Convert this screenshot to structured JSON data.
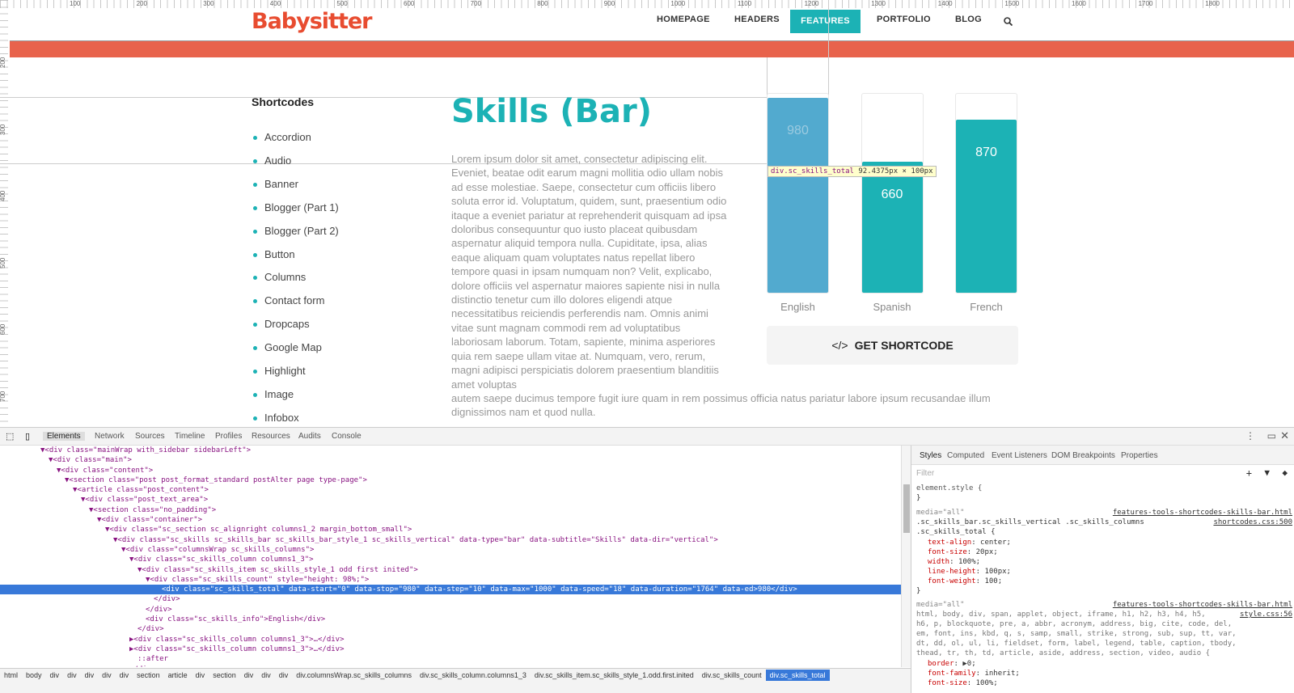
{
  "ruler": {
    "top": [
      "100",
      "200",
      "300",
      "400",
      "500",
      "600",
      "700",
      "800",
      "900",
      "1000",
      "1100",
      "1200",
      "1300",
      "1400",
      "1500",
      "1600",
      "1700",
      "1800"
    ],
    "left": [
      "200",
      "300",
      "400",
      "500",
      "600",
      "700"
    ]
  },
  "site": {
    "logo": "Babysitter",
    "nav": [
      "HOMEPAGE",
      "HEADERS",
      "FEATURES",
      "PORTFOLIO",
      "BLOG"
    ],
    "active_nav": "FEATURES",
    "search_icon": "search-icon",
    "brand_color": "#e84c30",
    "accent_color": "#1cb2b5"
  },
  "sidebar": {
    "title": "Shortcodes",
    "items": [
      "Accordion",
      "Audio",
      "Banner",
      "Blogger (Part 1)",
      "Blogger (Part 2)",
      "Button",
      "Columns",
      "Contact form",
      "Dropcaps",
      "Google Map",
      "Highlight",
      "Image",
      "Infobox"
    ]
  },
  "main": {
    "title": "Skills (Bar)",
    "lorem": "Lorem ipsum dolor sit amet, consectetur adipiscing elit. Eveniet, beatae odit earum magni mollitia odio ullam nobis ad esse molestiae. Saepe, consectetur cum officiis libero soluta error id. Voluptatum, quidem, sunt, praesentium odio itaque a eveniet pariatur at reprehenderit quisquam ad ipsa doloribus consequuntur quo iusto placeat quibusdam aspernatur aliquid tempora nulla. Cupiditate, ipsa, alias eaque aliquam quam voluptates natus repellat libero tempore quasi in ipsam numquam non? Velit, explicabo, dolore officiis vel aspernatur maiores sapiente nisi in nulla distinctio tenetur cum illo dolores eligendi atque necessitatibus reiciendis perferendis nam. Omnis animi vitae sunt magnam commodi rem ad voluptatibus laboriosam laborum. Totam, sapiente, minima asperiores quia rem saepe ullam vitae at. Numquam, vero, rerum, magni adipisci perspiciatis dolorem praesentium blanditiis amet voluptas",
    "lorem_tail": "autem saepe ducimus tempore fugit iure quam in rem possimus officia natus pariatur labore ipsum recusandae illum dignissimos nam et quod nulla.",
    "skills": [
      {
        "label": "English",
        "value": "980",
        "fraction": 0.98
      },
      {
        "label": "Spanish",
        "value": "660",
        "fraction": 0.66
      },
      {
        "label": "French",
        "value": "870",
        "fraction": 0.87
      }
    ],
    "skills_max": 1000,
    "shortcode_button": "GET SHORTCODE"
  },
  "tooltip": {
    "selector": "div.sc_skills_total",
    "size": "92.4375px × 100px"
  },
  "devtools": {
    "tabs": [
      "Elements",
      "Network",
      "Sources",
      "Timeline",
      "Profiles",
      "Resources",
      "Audits",
      "Console"
    ],
    "active_tab": "Elements",
    "code": [
      {
        "i": 4,
        "t": "▼<div class=\"mainWrap with_sidebar sidebarLeft\">"
      },
      {
        "i": 5,
        "t": "▼<div class=\"main\">"
      },
      {
        "i": 6,
        "t": "▼<div class=\"content\">"
      },
      {
        "i": 7,
        "t": "▼<section class=\"post post_format_standard postAlter page type-page\">"
      },
      {
        "i": 8,
        "t": "▼<article class=\"post_content\">"
      },
      {
        "i": 9,
        "t": "▼<div class=\"post_text_area\">"
      },
      {
        "i": 10,
        "t": "▼<section class=\"no_padding\">"
      },
      {
        "i": 11,
        "t": "▼<div class=\"container\">"
      },
      {
        "i": 12,
        "t": "▼<div class=\"sc_section sc_alignright columns1_2 margin_bottom_small\">"
      },
      {
        "i": 13,
        "t": "▼<div class=\"sc_skills sc_skills_bar sc_skills_bar_style_1 sc_skills_vertical\" data-type=\"bar\" data-subtitle=\"Skills\" data-dir=\"vertical\">"
      },
      {
        "i": 14,
        "t": "▼<div class=\"columnsWrap sc_skills_columns\">"
      },
      {
        "i": 15,
        "t": "▼<div class=\"sc_skills_column columns1_3\">"
      },
      {
        "i": 16,
        "t": "▼<div class=\"sc_skills_item sc_skills_style_1 odd first inited\">"
      },
      {
        "i": 17,
        "t": "▼<div class=\"sc_skills_count\" style=\"height: 98%;\">"
      },
      {
        "i": 19,
        "t": "<div class=\"sc_skills_total\" data-start=\"0\" data-stop=\"980\" data-step=\"10\" data-max=\"1000\" data-speed=\"18\" data-duration=\"1764\" data-ed>980</div>",
        "sel": true
      },
      {
        "i": 18,
        "t": "</div>"
      },
      {
        "i": 17,
        "t": "</div>"
      },
      {
        "i": 17,
        "t": "<div class=\"sc_skills_info\">English</div>"
      },
      {
        "i": 16,
        "t": "</div>"
      },
      {
        "i": 15,
        "t": "▶<div class=\"sc_skills_column columns1_3\">…</div>"
      },
      {
        "i": 15,
        "t": "▶<div class=\"sc_skills_column columns1_3\">…</div>"
      },
      {
        "i": 16,
        "t": "::after"
      },
      {
        "i": 15,
        "t": "</div>"
      }
    ],
    "breadcrumbs": [
      "html",
      "body",
      "div",
      "div",
      "div",
      "div",
      "div",
      "section",
      "article",
      "div",
      "section",
      "div",
      "div",
      "div",
      "div.columnsWrap.sc_skills_columns",
      "div.sc_skills_column.columns1_3",
      "div.sc_skills_item.sc_skills_style_1.odd.first.inited",
      "div.sc_skills_count",
      "div.sc_skills_total"
    ],
    "styles": {
      "tabs": [
        "Styles",
        "Computed",
        "Event Listeners",
        "DOM Breakpoints",
        "Properties"
      ],
      "filter_placeholder": "Filter",
      "element_style": "element.style {",
      "close": "}",
      "rule1": {
        "media": "media=\"all\"",
        "source": "features-tools-shortcodes-skills-bar.html",
        "file": "shortcodes.css:500",
        "selector1": ".sc_skills_bar.sc_skills_vertical .sc_skills_columns",
        "selector2": ".sc_skills_total {",
        "props": [
          [
            "text-align",
            "center;"
          ],
          [
            "font-size",
            "20px;"
          ],
          [
            "width",
            "100%;"
          ],
          [
            "line-height",
            "100px;"
          ],
          [
            "font-weight",
            "100;"
          ]
        ]
      },
      "rule2": {
        "media": "media=\"all\"",
        "source": "features-tools-shortcodes-skills-bar.html",
        "file": "style.css:56",
        "selector": "html, body, div, span, applet, object, iframe, h1, h2, h3, h4, h5,\nh6, p, blockquote, pre, a, abbr, acronym, address, big, cite, code, del, dfn,\nem, font, ins, kbd, q, s, samp, small, strike, strong, sub, sup, tt, var, dl,\ndt, dd, ol, ul, li, fieldset, form, label, legend, table, caption, tbody, tfoot,\nthead, tr, th, td, article, aside, address, section, video, audio {",
        "props": [
          [
            "border",
            "▶0;"
          ],
          [
            "font-family",
            "inherit;"
          ],
          [
            "font-size",
            "100%;"
          ]
        ]
      }
    }
  }
}
